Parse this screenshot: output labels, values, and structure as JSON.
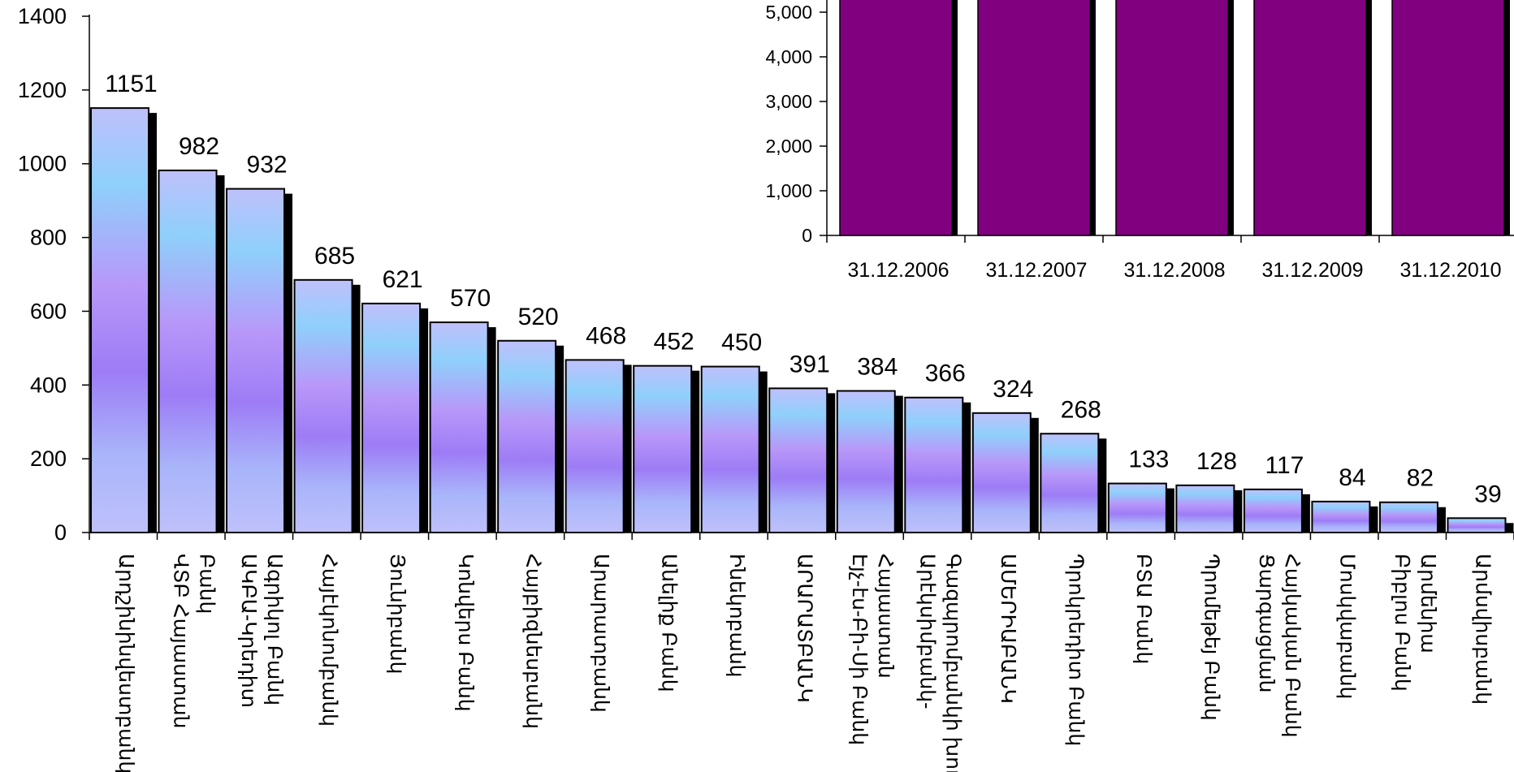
{
  "chart_data": [
    {
      "type": "bar",
      "title": "",
      "xlabel": "",
      "ylabel": "",
      "ylim": [
        0,
        1400
      ],
      "yticks": [
        0,
        200,
        400,
        600,
        800,
        1000,
        1200,
        1400
      ],
      "grid": false,
      "legend": "none",
      "data_labels": true,
      "categories": [
        "Արդշինինվեստբանկ",
        "ՎՏԲ Հայաստան\nԲանկ",
        "ԱԿԲԱ-Կրեդիտ\nԱգրիկոլ Բանկ",
        "Հայէկոնոմբանկ",
        "Յունիբանկ",
        "Կոնվերս Բանկ",
        "Հայբիզնեսբանկ",
        "Արարատբանկ",
        "Անելիք Բանկ",
        "Ինեկոբանկ",
        "ԱՐԱՐԱՏԲԱՆԿ",
        "Էյչ-էս-Բի-Սի Բանկ\nՀայաստան",
        "Արէկսիմբանկ-\nԳազպրոմբանկի խումբ",
        "ԱՄԵՐԻԱԲԱՆԿ",
        "Պրոկրեդիտ Բանկ",
        "ԲՏԱ Բանկ",
        "Պրոմեթեյ Բանկ",
        "Ցարգացման\nՀայկական Բանկ",
        "Մոսկվաբանկ",
        "Բիբլոս Բանկ\nԱրմենիա",
        "Արմսվիսբանկ"
      ],
      "values": [
        1151,
        982,
        932,
        685,
        621,
        570,
        520,
        468,
        452,
        450,
        391,
        384,
        366,
        324,
        268,
        133,
        128,
        117,
        84,
        82,
        39
      ],
      "colors": {
        "gradient": [
          "#bfc0fb",
          "#8fd0fb",
          "#b897f9",
          "#9d7cf6",
          "#a9b5fa",
          "#bfc0fb"
        ],
        "border": "#000000",
        "shadow": "#000000"
      }
    },
    {
      "type": "bar",
      "title": "",
      "xlabel": "",
      "ylabel": "",
      "ylim": [
        0,
        5600
      ],
      "yticks": [
        0,
        1000,
        2000,
        3000,
        4000,
        5000
      ],
      "ytick_labels": [
        "0",
        "1,000",
        "2,000",
        "3,000",
        "4,000",
        "5,000"
      ],
      "grid": false,
      "legend": "none",
      "categories": [
        "31.12.2006",
        "31.12.2007",
        "31.12.2008",
        "31.12.2009",
        "31.12.2010"
      ],
      "values": [
        5600,
        5700,
        5700,
        5700,
        5700
      ],
      "colors": {
        "fill": "#800080",
        "shadow": "#000000"
      }
    }
  ]
}
